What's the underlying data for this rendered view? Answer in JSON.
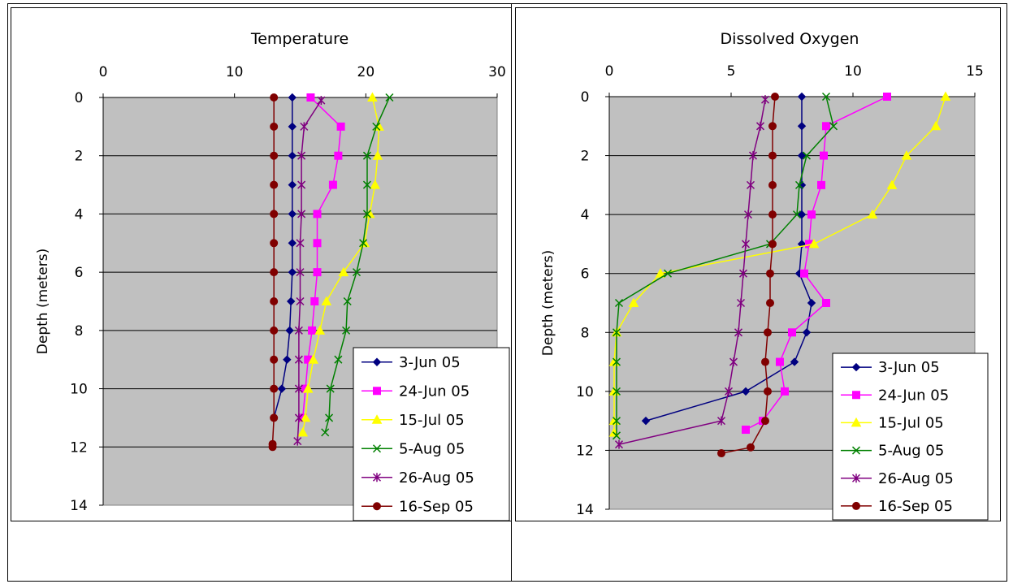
{
  "chart_data": [
    {
      "type": "line",
      "title": "Temperature",
      "xlabel": "",
      "ylabel": "Depth (meters)",
      "xlim": [
        0,
        30
      ],
      "ylim": [
        0,
        14
      ],
      "x_ticks": [
        "0",
        "10",
        "20",
        "30"
      ],
      "y_ticks": [
        "0",
        "2",
        "4",
        "6",
        "8",
        "10",
        "12",
        "14"
      ],
      "y_inverted": true,
      "x_axis_position": "top",
      "grid": "horizontal",
      "plot_background": "#c0c0c0",
      "legend_position": "bottom-right",
      "series": [
        {
          "name": "3-Jun 05",
          "color": "#000080",
          "marker": "diamond",
          "points": [
            [
              14.4,
              0
            ],
            [
              14.4,
              1
            ],
            [
              14.4,
              2
            ],
            [
              14.4,
              3
            ],
            [
              14.4,
              4
            ],
            [
              14.4,
              5
            ],
            [
              14.4,
              6
            ],
            [
              14.3,
              7
            ],
            [
              14.2,
              8
            ],
            [
              14.0,
              9
            ],
            [
              13.6,
              10
            ],
            [
              13.0,
              11
            ]
          ]
        },
        {
          "name": "24-Jun 05",
          "color": "#ff00ff",
          "marker": "square",
          "points": [
            [
              15.8,
              0
            ],
            [
              18.1,
              1
            ],
            [
              17.9,
              2
            ],
            [
              17.5,
              3
            ],
            [
              16.3,
              4
            ],
            [
              16.3,
              5
            ],
            [
              16.3,
              6
            ],
            [
              16.1,
              7
            ],
            [
              15.9,
              8
            ],
            [
              15.6,
              9
            ],
            [
              15.4,
              10
            ],
            [
              15.2,
              11
            ]
          ]
        },
        {
          "name": "15-Jul 05",
          "color": "#ffff00",
          "marker": "triangle",
          "points": [
            [
              20.5,
              0
            ],
            [
              21.0,
              1
            ],
            [
              20.9,
              2
            ],
            [
              20.7,
              3
            ],
            [
              20.3,
              4
            ],
            [
              19.9,
              5
            ],
            [
              18.3,
              6
            ],
            [
              17.0,
              7
            ],
            [
              16.5,
              8
            ],
            [
              16.0,
              9
            ],
            [
              15.6,
              10
            ],
            [
              15.4,
              11
            ],
            [
              15.2,
              11.5
            ]
          ]
        },
        {
          "name": "5-Aug 05",
          "color": "#008000",
          "marker": "x",
          "points": [
            [
              21.8,
              0
            ],
            [
              20.8,
              1
            ],
            [
              20.1,
              2
            ],
            [
              20.1,
              3
            ],
            [
              20.1,
              4
            ],
            [
              19.8,
              5
            ],
            [
              19.3,
              6
            ],
            [
              18.6,
              7
            ],
            [
              18.5,
              8
            ],
            [
              17.9,
              9
            ],
            [
              17.3,
              10
            ],
            [
              17.2,
              11
            ],
            [
              16.9,
              11.5
            ]
          ]
        },
        {
          "name": "26-Aug 05",
          "color": "#800080",
          "marker": "star",
          "points": [
            [
              16.6,
              0.1
            ],
            [
              15.3,
              1
            ],
            [
              15.1,
              2
            ],
            [
              15.1,
              3
            ],
            [
              15.1,
              4
            ],
            [
              15.0,
              5
            ],
            [
              15.0,
              6
            ],
            [
              15.0,
              7
            ],
            [
              14.9,
              8
            ],
            [
              14.9,
              9
            ],
            [
              14.9,
              10
            ],
            [
              14.9,
              11
            ],
            [
              14.8,
              11.8
            ]
          ]
        },
        {
          "name": "16-Sep 05",
          "color": "#800000",
          "marker": "circle",
          "points": [
            [
              13.0,
              0
            ],
            [
              13.0,
              1
            ],
            [
              13.0,
              2
            ],
            [
              13.0,
              3
            ],
            [
              13.0,
              4
            ],
            [
              13.0,
              5
            ],
            [
              13.0,
              6
            ],
            [
              13.0,
              7
            ],
            [
              13.0,
              8
            ],
            [
              13.0,
              9
            ],
            [
              13.0,
              10
            ],
            [
              13.0,
              11
            ],
            [
              12.9,
              11.9
            ],
            [
              12.9,
              12
            ]
          ]
        }
      ]
    },
    {
      "type": "line",
      "title": "Dissolved Oxygen",
      "xlabel": "",
      "ylabel": "Depth (meters)",
      "xlim": [
        0,
        15
      ],
      "ylim": [
        0,
        14
      ],
      "x_ticks": [
        "0",
        "5",
        "10",
        "15"
      ],
      "y_ticks": [
        "0",
        "2",
        "4",
        "6",
        "8",
        "10",
        "12",
        "14"
      ],
      "y_inverted": true,
      "x_axis_position": "top",
      "grid": "horizontal",
      "plot_background": "#c0c0c0",
      "legend_position": "bottom-right",
      "series": [
        {
          "name": "3-Jun 05",
          "color": "#000080",
          "marker": "diamond",
          "points": [
            [
              7.9,
              0
            ],
            [
              7.9,
              1
            ],
            [
              7.9,
              2
            ],
            [
              7.9,
              3
            ],
            [
              7.9,
              4
            ],
            [
              7.9,
              5
            ],
            [
              7.8,
              6
            ],
            [
              8.3,
              7
            ],
            [
              8.1,
              8
            ],
            [
              7.6,
              9
            ],
            [
              5.6,
              10
            ],
            [
              1.5,
              11
            ]
          ]
        },
        {
          "name": "24-Jun 05",
          "color": "#ff00ff",
          "marker": "square",
          "points": [
            [
              11.4,
              0
            ],
            [
              8.9,
              1
            ],
            [
              8.8,
              2
            ],
            [
              8.7,
              3
            ],
            [
              8.3,
              4
            ],
            [
              8.2,
              5
            ],
            [
              8.0,
              6
            ],
            [
              8.9,
              7
            ],
            [
              7.5,
              8
            ],
            [
              7.0,
              9
            ],
            [
              7.2,
              10
            ],
            [
              6.3,
              11
            ],
            [
              5.6,
              11.3
            ]
          ]
        },
        {
          "name": "15-Jul 05",
          "color": "#ffff00",
          "marker": "triangle",
          "points": [
            [
              13.8,
              0
            ],
            [
              13.4,
              1
            ],
            [
              12.2,
              2
            ],
            [
              11.6,
              3
            ],
            [
              10.8,
              4
            ],
            [
              8.4,
              5
            ],
            [
              2.1,
              6
            ],
            [
              1.0,
              7
            ],
            [
              0.3,
              8
            ],
            [
              0.2,
              9
            ],
            [
              0.2,
              10
            ],
            [
              0.2,
              11
            ],
            [
              0.2,
              11.4
            ]
          ]
        },
        {
          "name": "5-Aug 05",
          "color": "#008000",
          "marker": "x",
          "points": [
            [
              8.9,
              0
            ],
            [
              9.2,
              1
            ],
            [
              8.1,
              2
            ],
            [
              7.8,
              3
            ],
            [
              7.7,
              4
            ],
            [
              6.6,
              5
            ],
            [
              2.4,
              6
            ],
            [
              0.4,
              7
            ],
            [
              0.3,
              8
            ],
            [
              0.3,
              9
            ],
            [
              0.3,
              10
            ],
            [
              0.3,
              11
            ],
            [
              0.3,
              11.5
            ]
          ]
        },
        {
          "name": "26-Aug 05",
          "color": "#800080",
          "marker": "star",
          "points": [
            [
              6.4,
              0.1
            ],
            [
              6.2,
              1
            ],
            [
              5.9,
              2
            ],
            [
              5.8,
              3
            ],
            [
              5.7,
              4
            ],
            [
              5.6,
              5
            ],
            [
              5.5,
              6
            ],
            [
              5.4,
              7
            ],
            [
              5.3,
              8
            ],
            [
              5.1,
              9
            ],
            [
              4.9,
              10
            ],
            [
              4.6,
              11
            ],
            [
              0.4,
              11.8
            ]
          ]
        },
        {
          "name": "16-Sep 05",
          "color": "#800000",
          "marker": "circle",
          "points": [
            [
              6.8,
              0
            ],
            [
              6.7,
              1
            ],
            [
              6.7,
              2
            ],
            [
              6.7,
              3
            ],
            [
              6.7,
              4
            ],
            [
              6.7,
              5
            ],
            [
              6.6,
              6
            ],
            [
              6.6,
              7
            ],
            [
              6.5,
              8
            ],
            [
              6.4,
              9
            ],
            [
              6.5,
              10
            ],
            [
              6.4,
              11
            ],
            [
              5.8,
              11.9
            ],
            [
              4.6,
              12.1
            ]
          ]
        }
      ]
    }
  ]
}
